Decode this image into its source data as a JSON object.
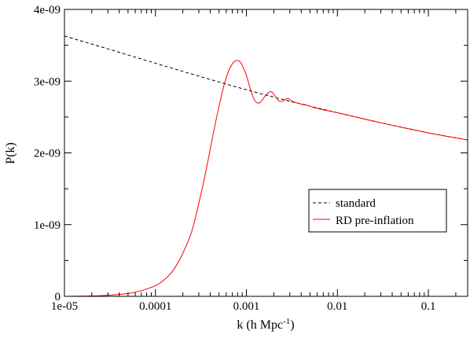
{
  "chart_data": {
    "type": "line",
    "xlabel": "k (h Mpc",
    "xlabel_sup": "-1",
    "xlabel_suffix": ")",
    "ylabel": "P(k)",
    "x_scale": "log",
    "xlim": [
      1e-05,
      0.27
    ],
    "ylim": [
      0,
      4e-09
    ],
    "x_ticks": [
      {
        "value": 1e-05,
        "label": "1e-05"
      },
      {
        "value": 0.0001,
        "label": "0.0001"
      },
      {
        "value": 0.001,
        "label": "0.001"
      },
      {
        "value": 0.01,
        "label": "0.01"
      },
      {
        "value": 0.1,
        "label": "0.1"
      }
    ],
    "y_ticks": [
      {
        "value": 0,
        "label": "0"
      },
      {
        "value": 1e-09,
        "label": "1e-09"
      },
      {
        "value": 2e-09,
        "label": "2e-09"
      },
      {
        "value": 3e-09,
        "label": "3e-09"
      },
      {
        "value": 4e-09,
        "label": "4e-09"
      }
    ],
    "grid": false,
    "legend_position": "center-right",
    "series": [
      {
        "name": "standard",
        "color": "#000000",
        "dash": "dashed",
        "x": [
          1e-05,
          3e-05,
          0.0001,
          0.0003,
          0.001,
          0.003,
          0.01,
          0.03,
          0.1,
          0.27
        ],
        "y": [
          3.63e-09,
          3.45e-09,
          3.25e-09,
          3.07e-09,
          2.88e-09,
          2.72e-09,
          2.56e-09,
          2.42e-09,
          2.28e-09,
          2.18e-09
        ]
      },
      {
        "name": "RD pre-inflation",
        "color": "#ff0000",
        "dash": "solid",
        "x": [
          1e-05,
          2e-05,
          3e-05,
          5e-05,
          7e-05,
          0.0001,
          0.00013,
          0.00016,
          0.0002,
          0.00025,
          0.0003,
          0.00035,
          0.0004,
          0.00045,
          0.0005,
          0.00055,
          0.0006,
          0.00065,
          0.0007,
          0.00075,
          0.0008,
          0.00085,
          0.0009,
          0.001,
          0.0011,
          0.0012,
          0.0013,
          0.0014,
          0.0015,
          0.0016,
          0.0018,
          0.0019,
          0.002,
          0.0021,
          0.0023,
          0.0025,
          0.0027,
          0.0029,
          0.003,
          0.0032,
          0.0035,
          0.0038,
          0.004,
          0.0045,
          0.005,
          0.006,
          0.007,
          0.01,
          0.03,
          0.1,
          0.27
        ],
        "y": [
          0,
          5e-12,
          1.5e-11,
          4e-11,
          8e-11,
          1.5e-10,
          2.5e-10,
          3.8e-10,
          6e-10,
          9e-10,
          1.3e-09,
          1.68e-09,
          2.05e-09,
          2.38e-09,
          2.65e-09,
          2.88e-09,
          3.05e-09,
          3.17e-09,
          3.24e-09,
          3.28e-09,
          3.29e-09,
          3.27e-09,
          3.22e-09,
          3.08e-09,
          2.9e-09,
          2.76e-09,
          2.7e-09,
          2.7e-09,
          2.74e-09,
          2.79e-09,
          2.85e-09,
          2.85e-09,
          2.82e-09,
          2.78e-09,
          2.72e-09,
          2.72e-09,
          2.75e-09,
          2.76e-09,
          2.74e-09,
          2.72e-09,
          2.7e-09,
          2.69e-09,
          2.68e-09,
          2.67e-09,
          2.65e-09,
          2.62e-09,
          2.6e-09,
          2.56e-09,
          2.42e-09,
          2.28e-09,
          2.18e-09
        ]
      }
    ]
  }
}
